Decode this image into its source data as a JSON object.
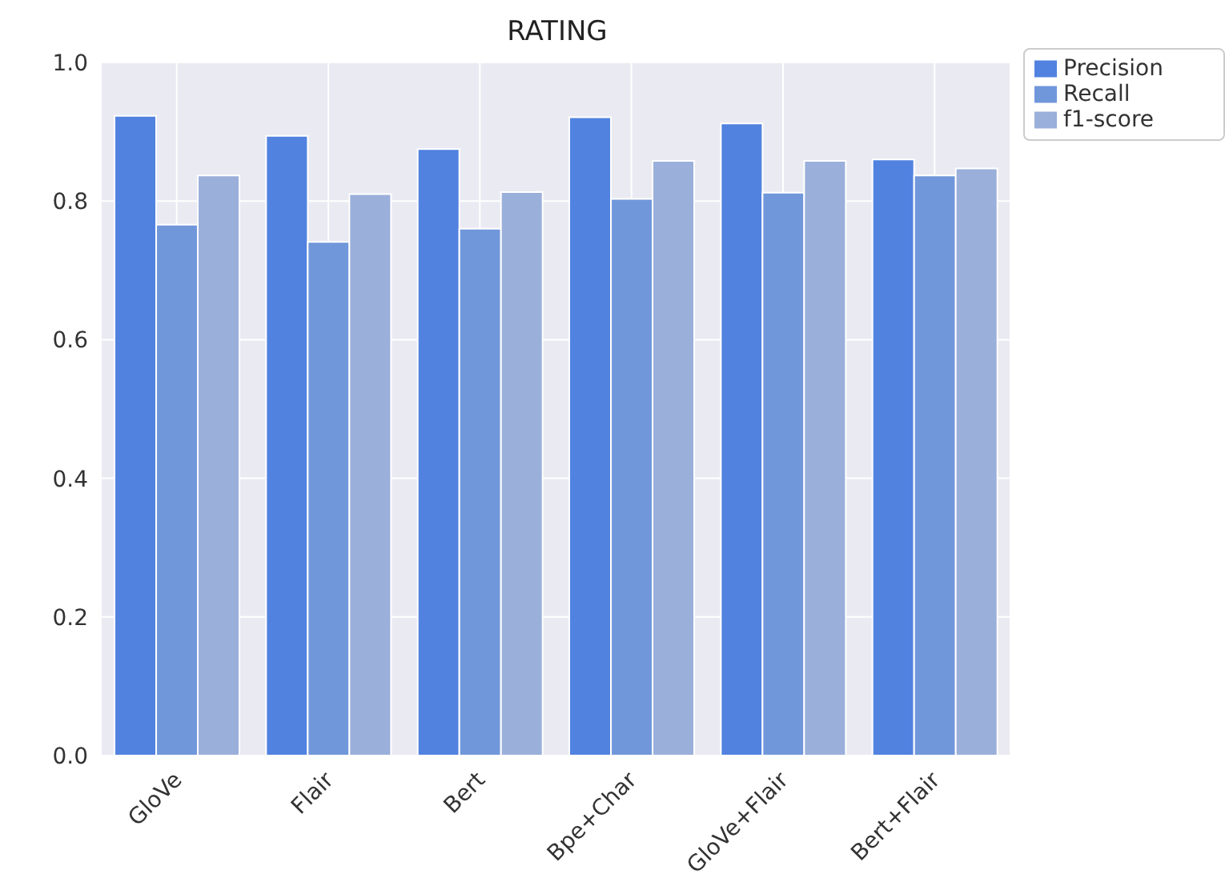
{
  "chart_data": {
    "type": "bar",
    "title": "RATING",
    "categories": [
      "GloVe",
      "Flair",
      "Bert",
      "Bpe+Char",
      "GloVe+Flair",
      "Bert+Flair"
    ],
    "series": [
      {
        "name": "Precision",
        "color": "#5182e0",
        "values": [
          0.923,
          0.894,
          0.875,
          0.921,
          0.912,
          0.86
        ]
      },
      {
        "name": "Recall",
        "color": "#7197db",
        "values": [
          0.766,
          0.741,
          0.76,
          0.803,
          0.812,
          0.837
        ]
      },
      {
        "name": "f1-score",
        "color": "#9aafda",
        "values": [
          0.837,
          0.81,
          0.813,
          0.858,
          0.858,
          0.847
        ]
      }
    ],
    "ylim": [
      0,
      1
    ],
    "yticks": [
      {
        "value": 0,
        "label": "0.0"
      },
      0.2,
      0.4,
      0.6,
      0.8,
      {
        "value": 1,
        "label": "1.0"
      }
    ],
    "grid": true,
    "legend": "top right"
  }
}
